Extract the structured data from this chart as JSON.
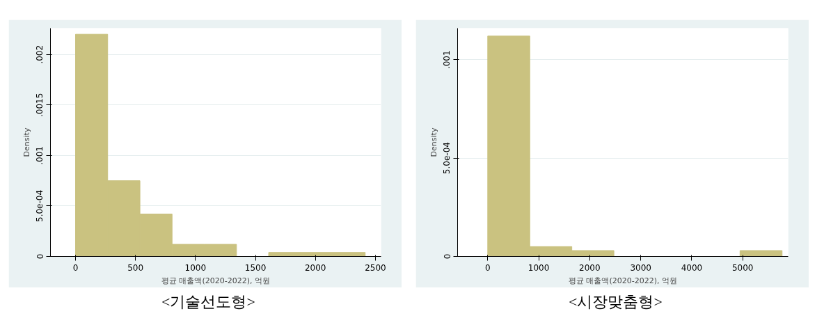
{
  "chart_data": [
    {
      "type": "histogram",
      "title": "<기술선도형>",
      "xlabel": "평균 매출액(2020-2022), 억원",
      "ylabel": "Density",
      "bins": [
        0,
        268,
        537,
        805,
        1073,
        1342,
        1610,
        1878,
        2147,
        2415
      ],
      "values": [
        0.0022,
        0.00075,
        0.00042,
        0.00012,
        0.00012,
        0,
        4e-05,
        4e-05,
        4e-05
      ],
      "color": "#cac280",
      "xlim": [
        -209,
        2547
      ],
      "xticks": [
        0,
        500,
        1000,
        1500,
        2000,
        2500
      ],
      "ylim": [
        0,
        0.00226
      ],
      "yticks": [
        0,
        {
          "value": 0.0005,
          "label": "5.0e-04"
        },
        {
          "value": 0.001,
          "label": ".001"
        },
        {
          "value": 0.0015,
          "label": ".0015"
        },
        {
          "value": 0.002,
          "label": ".002"
        }
      ],
      "grid": "y"
    },
    {
      "type": "histogram",
      "title": "<시장맞춤형>",
      "xlabel": "평균 매출액(2020-2022), 억원",
      "ylabel": "Density",
      "bins": [
        0,
        825,
        1649,
        2474,
        3298,
        4123,
        4947,
        5772
      ],
      "values": [
        0.00112,
        5e-05,
        3e-05,
        0,
        0,
        0,
        3e-05
      ],
      "color": "#cac280",
      "xlim": [
        -591,
        5891
      ],
      "xticks": [
        0,
        1000,
        2000,
        3000,
        4000,
        5000
      ],
      "ylim": [
        0,
        0.00116
      ],
      "yticks": [
        0,
        {
          "value": 0.0005,
          "label": "5.0e-04"
        },
        {
          "value": 0.001,
          "label": ".001"
        }
      ],
      "grid": "y"
    }
  ]
}
